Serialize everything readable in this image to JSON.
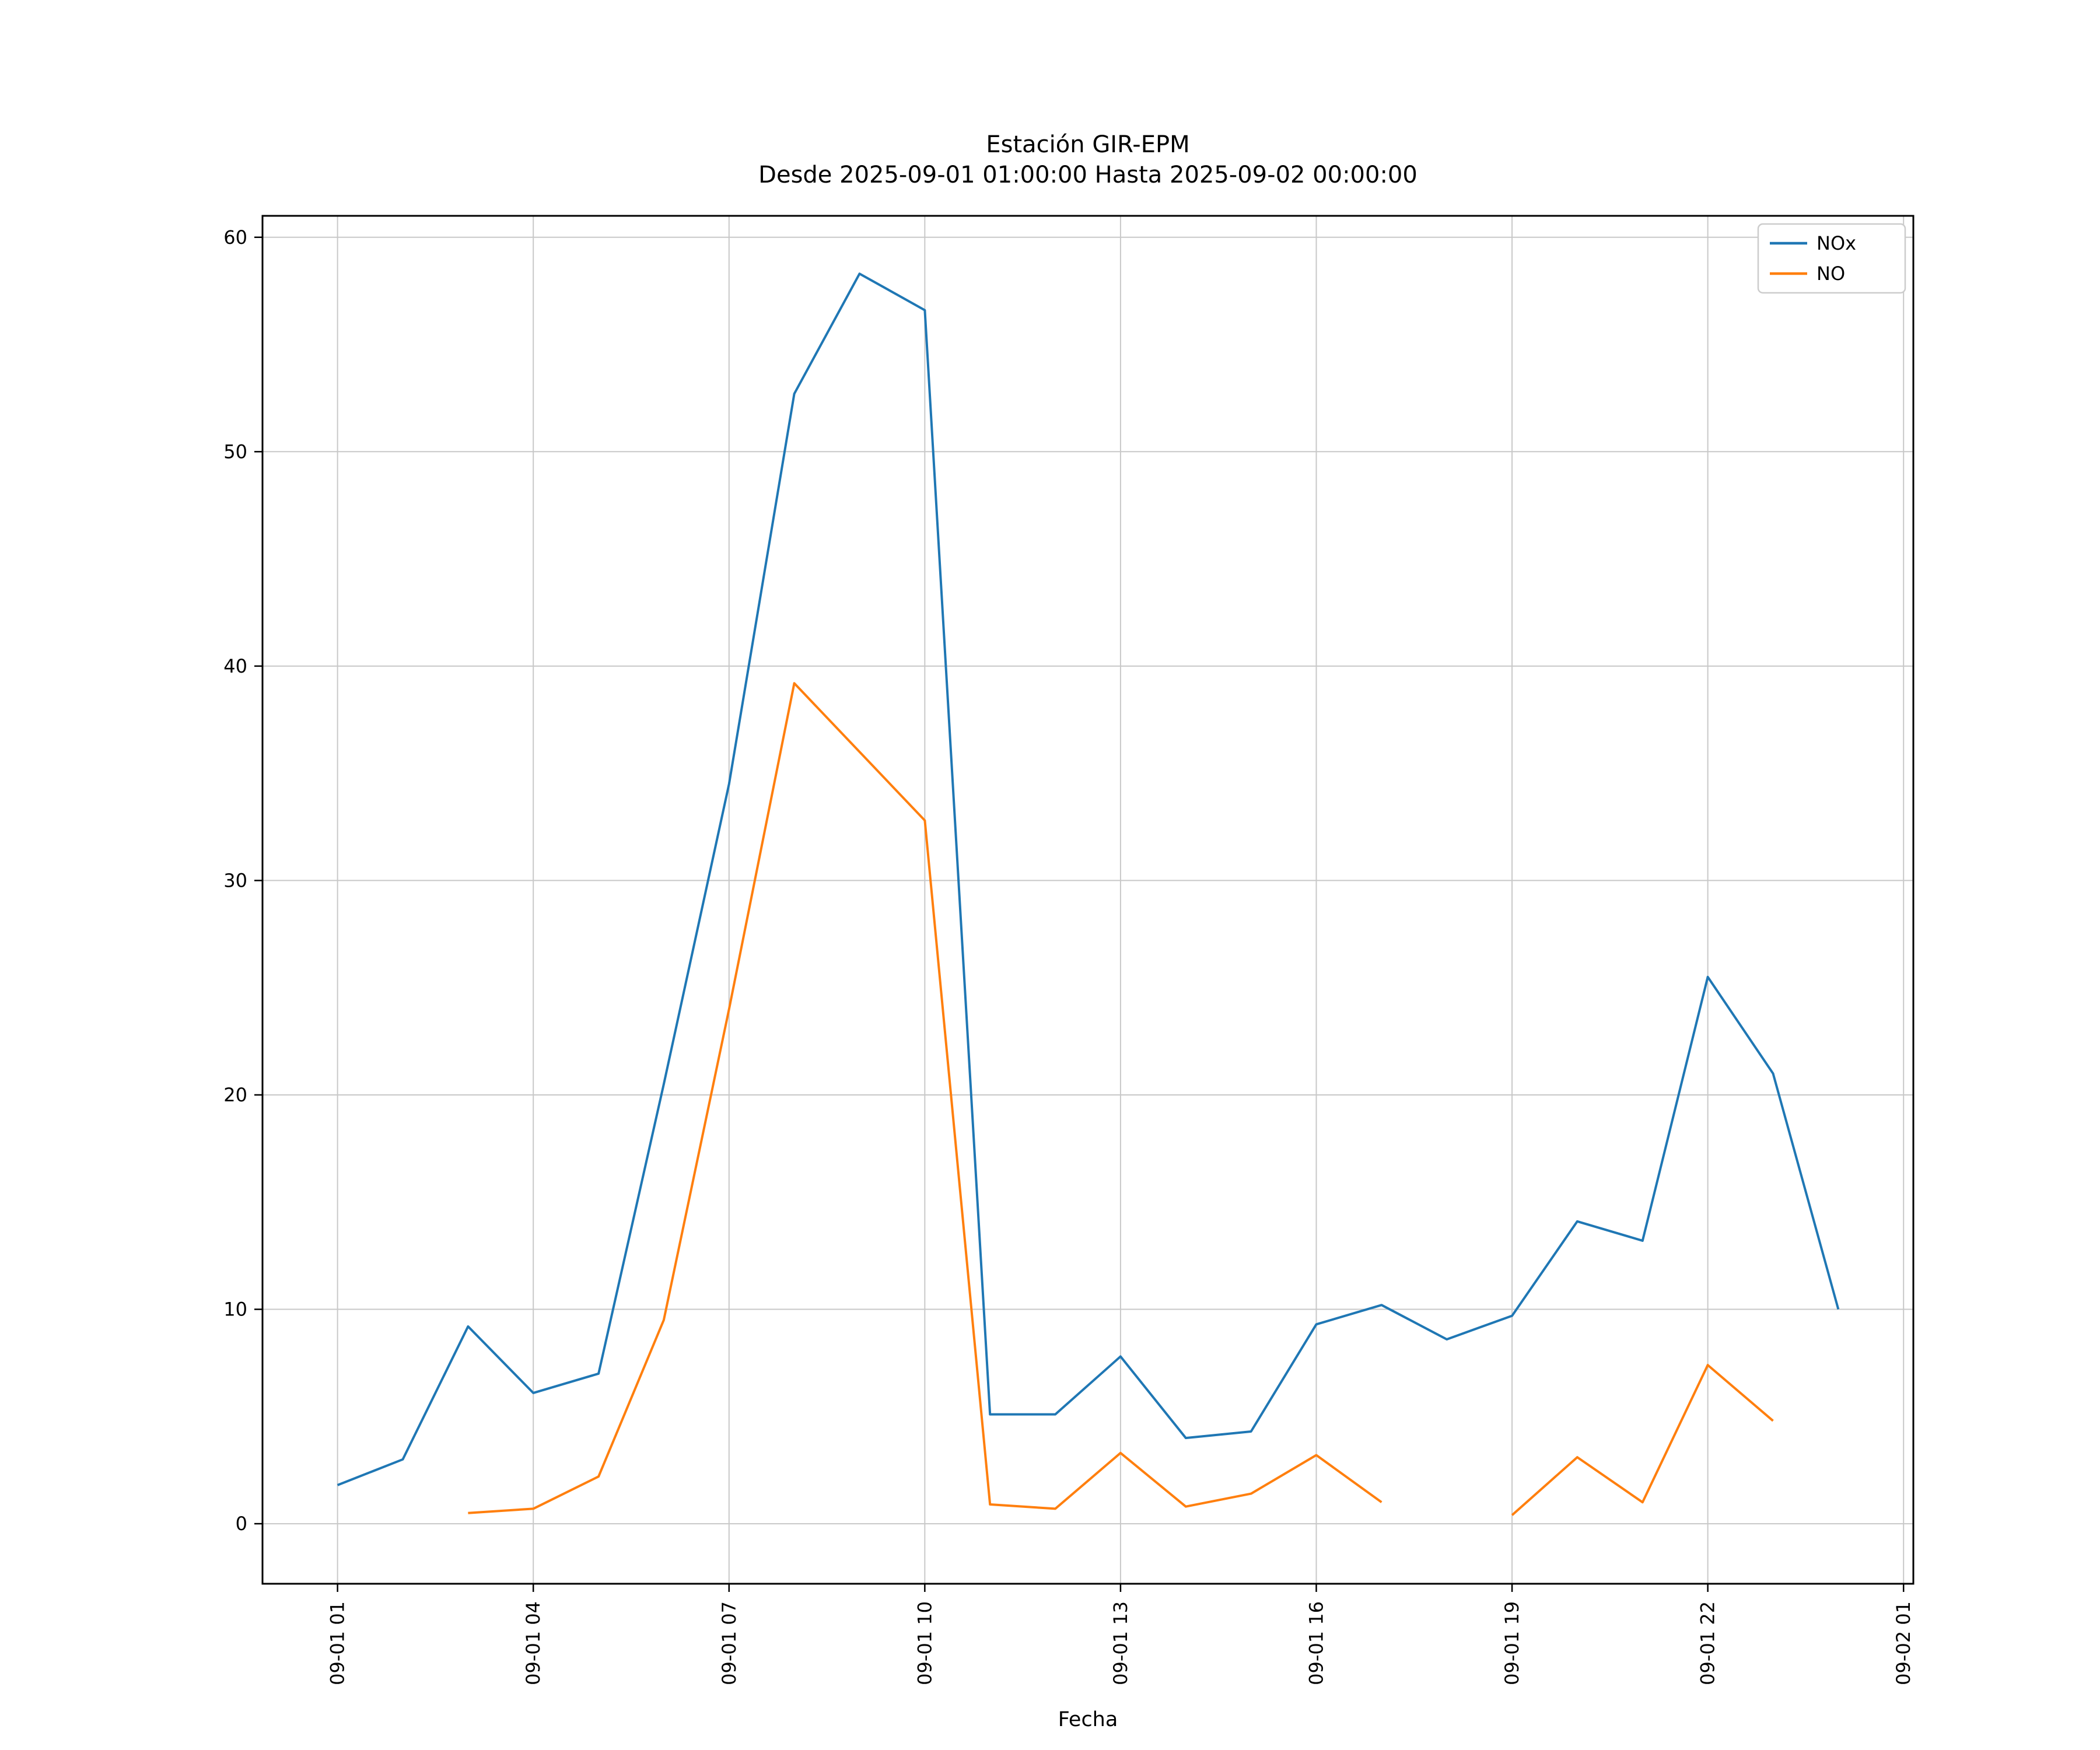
{
  "chart_data": {
    "type": "line",
    "title": "Estación GIR-EPM",
    "subtitle": "Desde 2025-09-01 01:00:00 Hasta 2025-09-02 00:00:00",
    "xlabel": "Fecha",
    "ylabel": "",
    "grid": true,
    "legend_position": "upper right",
    "xlim_hours": [
      -0.15,
      25.15
    ],
    "ylim": [
      -2.8,
      61.0
    ],
    "y_ticks": [
      0,
      10,
      20,
      30,
      40,
      50,
      60
    ],
    "x_ticks": [
      {
        "hour": 1,
        "label": "09-01 01"
      },
      {
        "hour": 4,
        "label": "09-01 04"
      },
      {
        "hour": 7,
        "label": "09-01 07"
      },
      {
        "hour": 10,
        "label": "09-01 10"
      },
      {
        "hour": 13,
        "label": "09-01 13"
      },
      {
        "hour": 16,
        "label": "09-01 16"
      },
      {
        "hour": 19,
        "label": "09-01 19"
      },
      {
        "hour": 22,
        "label": "09-01 22"
      },
      {
        "hour": 25,
        "label": "09-02 01"
      }
    ],
    "x_hours": [
      1,
      2,
      3,
      4,
      5,
      6,
      7,
      8,
      9,
      10,
      11,
      12,
      13,
      14,
      15,
      16,
      17,
      18,
      19,
      20,
      21,
      22,
      23,
      24
    ],
    "series": [
      {
        "name": "NOx",
        "color": "#1f77b4",
        "values": [
          1.8,
          3.0,
          9.2,
          6.1,
          7.0,
          20.5,
          34.5,
          52.7,
          58.3,
          56.6,
          5.1,
          5.1,
          7.8,
          4.0,
          4.3,
          9.3,
          10.2,
          8.6,
          9.7,
          14.1,
          13.2,
          25.5,
          21.0,
          10.0
        ]
      },
      {
        "name": "NO",
        "color": "#ff7f0e",
        "values": [
          null,
          null,
          0.5,
          0.7,
          2.2,
          9.5,
          24.0,
          39.2,
          36.0,
          32.8,
          0.9,
          0.7,
          3.3,
          0.8,
          1.4,
          3.2,
          1.0,
          null,
          0.4,
          3.1,
          1.0,
          7.4,
          4.8,
          null
        ]
      }
    ],
    "styles": {
      "grid_color": "#c8c8c8",
      "spine_color": "#000000",
      "tick_color": "#000000",
      "legend_border_color": "#cccccc",
      "background": "#ffffff"
    }
  }
}
